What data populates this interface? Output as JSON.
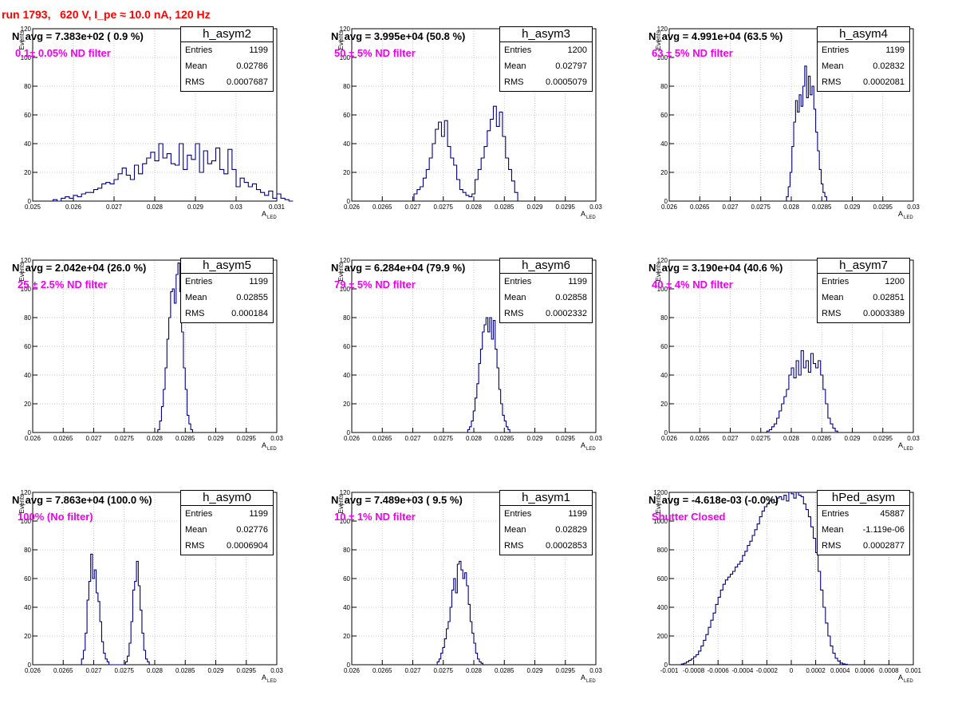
{
  "page_title": "run 1793,   620 V, I_pe ≈ 10.0 nA, 120 Hz",
  "page_title_color": "#ff0000",
  "hist_color": "#000080",
  "filter_color": "#ee00ee",
  "chart_data": [
    {
      "type": "bar",
      "hist_name": "h_asym2",
      "navg_text": "N_avg = 7.383e+02 ( 0.9 %)",
      "filter_text": "0.1± 0.05% ND filter",
      "stats": [
        [
          "Entries",
          "1199"
        ],
        [
          "Mean",
          "0.02786"
        ],
        [
          "RMS",
          "0.0007687"
        ]
      ],
      "ylabel": "Events",
      "xlabel": "A",
      "xlabel_sub": "LED",
      "xlim": [
        0.025,
        0.031
      ],
      "ylim": [
        0,
        120
      ],
      "xticks": [
        0.025,
        0.026,
        0.027,
        0.028,
        0.029,
        0.03,
        0.031
      ],
      "xtick_labels": [
        "0.025",
        "0.026",
        "0.027",
        "0.028",
        "0.029",
        "0.03",
        "0.031"
      ],
      "yticks": [
        0,
        20,
        40,
        60,
        80,
        100,
        120
      ],
      "ytick_labels": [
        "0",
        "20",
        "40",
        "60",
        "80",
        "100",
        "120"
      ],
      "grid": true,
      "bin_start": 0.0255,
      "bin_width": 0.0001,
      "values": [
        1,
        0,
        2,
        3,
        2,
        4,
        3,
        5,
        6,
        6,
        8,
        9,
        12,
        13,
        12,
        15,
        19,
        23,
        18,
        15,
        25,
        19,
        26,
        30,
        34,
        28,
        40,
        30,
        33,
        26,
        25,
        40,
        22,
        32,
        29,
        40,
        20,
        35,
        26,
        28,
        37,
        22,
        19,
        36,
        22,
        10,
        16,
        13,
        10,
        12,
        8,
        6,
        4,
        7,
        2,
        5,
        2,
        1,
        0
      ]
    },
    {
      "type": "bar",
      "hist_name": "h_asym3",
      "navg_text": "N_avg = 3.995e+04 (50.8 %)",
      "filter_text": "50 ± 5% ND filter",
      "stats": [
        [
          "Entries",
          "1200"
        ],
        [
          "Mean",
          "0.02797"
        ],
        [
          "RMS",
          "0.0005079"
        ]
      ],
      "ylabel": "Events",
      "xlabel": "A",
      "xlabel_sub": "LED",
      "xlim": [
        0.026,
        0.03
      ],
      "ylim": [
        0,
        120
      ],
      "xticks": [
        0.026,
        0.0265,
        0.027,
        0.0275,
        0.028,
        0.0285,
        0.029,
        0.0295,
        0.03
      ],
      "xtick_labels": [
        "0.026",
        "0.0265",
        "0.027",
        "0.0275",
        "0.028",
        "0.0285",
        "0.029",
        "0.0295",
        "0.03"
      ],
      "yticks": [
        0,
        20,
        40,
        60,
        80,
        100,
        120
      ],
      "ytick_labels": [
        "0",
        "20",
        "40",
        "60",
        "80",
        "100",
        "120"
      ],
      "grid": true,
      "bin_start": 0.02702,
      "bin_width": 5e-05,
      "values": [
        5,
        8,
        10,
        16,
        22,
        30,
        40,
        50,
        55,
        45,
        56,
        38,
        30,
        25,
        15,
        8,
        6,
        4,
        3,
        5,
        15,
        22,
        30,
        38,
        49,
        57,
        66,
        52,
        62,
        45,
        30,
        22,
        14,
        6
      ]
    },
    {
      "type": "bar",
      "hist_name": "h_asym4",
      "navg_text": "N_avg = 4.991e+04 (63.5 %)",
      "filter_text": "63 ± 5% ND filter",
      "stats": [
        [
          "Entries",
          "1199"
        ],
        [
          "Mean",
          "0.02832"
        ],
        [
          "RMS",
          "0.0002081"
        ]
      ],
      "ylabel": "Events",
      "xlabel": "A",
      "xlabel_sub": "LED",
      "xlim": [
        0.026,
        0.03
      ],
      "ylim": [
        0,
        120
      ],
      "xticks": [
        0.026,
        0.0265,
        0.027,
        0.0275,
        0.028,
        0.0285,
        0.029,
        0.0295,
        0.03
      ],
      "xtick_labels": [
        "0.026",
        "0.0265",
        "0.027",
        "0.0275",
        "0.028",
        "0.0285",
        "0.029",
        "0.0295",
        "0.03"
      ],
      "yticks": [
        0,
        20,
        40,
        60,
        80,
        100,
        120
      ],
      "ytick_labels": [
        "0",
        "20",
        "40",
        "60",
        "80",
        "100",
        "120"
      ],
      "grid": true,
      "bin_start": 0.02792,
      "bin_width": 3e-05,
      "values": [
        3,
        10,
        20,
        38,
        55,
        70,
        62,
        74,
        66,
        80,
        94,
        72,
        87,
        74,
        80,
        64,
        48,
        35,
        22,
        12,
        6,
        3
      ]
    },
    {
      "type": "bar",
      "hist_name": "h_asym5",
      "navg_text": "N_avg = 2.042e+04 (26.0 %)",
      "filter_text": "25 ± 2.5% ND filter",
      "stats": [
        [
          "Entries",
          "1199"
        ],
        [
          "Mean",
          "0.02855"
        ],
        [
          "RMS",
          "0.000184"
        ]
      ],
      "ylabel": "Events",
      "xlabel": "A",
      "xlabel_sub": "LED",
      "xlim": [
        0.026,
        0.03
      ],
      "ylim": [
        0,
        120
      ],
      "xticks": [
        0.026,
        0.0265,
        0.027,
        0.0275,
        0.028,
        0.0285,
        0.029,
        0.0295,
        0.03
      ],
      "xtick_labels": [
        "0.026",
        "0.0265",
        "0.027",
        "0.0275",
        "0.028",
        "0.0285",
        "0.029",
        "0.0295",
        "0.03"
      ],
      "yticks": [
        0,
        20,
        40,
        60,
        80,
        100,
        120
      ],
      "ytick_labels": [
        "0",
        "20",
        "40",
        "60",
        "80",
        "100",
        "120"
      ],
      "grid": true,
      "bin_start": 0.02805,
      "bin_width": 3e-05,
      "values": [
        2,
        8,
        18,
        30,
        45,
        65,
        80,
        98,
        100,
        90,
        110,
        118,
        98,
        70,
        45,
        30,
        12,
        6,
        2
      ]
    },
    {
      "type": "bar",
      "hist_name": "h_asym6",
      "navg_text": "N_avg = 6.284e+04 (79.9 %)",
      "filter_text": "79 ± 5% ND filter",
      "stats": [
        [
          "Entries",
          "1199"
        ],
        [
          "Mean",
          "0.02858"
        ],
        [
          "RMS",
          "0.0002332"
        ]
      ],
      "ylabel": "Events",
      "xlabel": "A",
      "xlabel_sub": "LED",
      "xlim": [
        0.026,
        0.03
      ],
      "ylim": [
        0,
        120
      ],
      "xticks": [
        0.026,
        0.0265,
        0.027,
        0.0275,
        0.028,
        0.0285,
        0.029,
        0.0295,
        0.03
      ],
      "xtick_labels": [
        "0.026",
        "0.0265",
        "0.027",
        "0.0275",
        "0.028",
        "0.0285",
        "0.029",
        "0.0295",
        "0.03"
      ],
      "yticks": [
        0,
        20,
        40,
        60,
        80,
        100,
        120
      ],
      "ytick_labels": [
        "0",
        "20",
        "40",
        "60",
        "80",
        "100",
        "120"
      ],
      "grid": true,
      "bin_start": 0.0279,
      "bin_width": 3e-05,
      "values": [
        2,
        4,
        8,
        15,
        24,
        34,
        48,
        58,
        70,
        75,
        80,
        70,
        80,
        65,
        78,
        58,
        45,
        30,
        20,
        12,
        8,
        4,
        2
      ]
    },
    {
      "type": "bar",
      "hist_name": "h_asym7",
      "navg_text": "N_avg = 3.190e+04 (40.6 %)",
      "filter_text": "40 ± 4% ND filter",
      "stats": [
        [
          "Entries",
          "1200"
        ],
        [
          "Mean",
          "0.02851"
        ],
        [
          "RMS",
          "0.0003389"
        ]
      ],
      "ylabel": "Events",
      "xlabel": "A",
      "xlabel_sub": "LED",
      "xlim": [
        0.026,
        0.03
      ],
      "ylim": [
        0,
        120
      ],
      "xticks": [
        0.026,
        0.0265,
        0.027,
        0.0275,
        0.028,
        0.0285,
        0.029,
        0.0295,
        0.03
      ],
      "xtick_labels": [
        "0.026",
        "0.0265",
        "0.027",
        "0.0275",
        "0.028",
        "0.0285",
        "0.029",
        "0.0295",
        "0.03"
      ],
      "yticks": [
        0,
        20,
        40,
        60,
        80,
        100,
        120
      ],
      "ytick_labels": [
        "0",
        "20",
        "40",
        "60",
        "80",
        "100",
        "120"
      ],
      "grid": true,
      "bin_start": 0.0276,
      "bin_width": 4e-05,
      "values": [
        1,
        2,
        4,
        6,
        10,
        15,
        20,
        25,
        30,
        40,
        45,
        38,
        50,
        40,
        57,
        45,
        50,
        42,
        55,
        48,
        45,
        50,
        40,
        30,
        20,
        10,
        6,
        3,
        1
      ]
    },
    {
      "type": "bar",
      "hist_name": "h_asym0",
      "navg_text": "N_avg = 7.863e+04 (100.0 %)",
      "filter_text": "100% (No filter)",
      "stats": [
        [
          "Entries",
          "1199"
        ],
        [
          "Mean",
          "0.02776"
        ],
        [
          "RMS",
          "0.0006904"
        ]
      ],
      "ylabel": "Events",
      "xlabel": "A",
      "xlabel_sub": "LED",
      "xlim": [
        0.026,
        0.03
      ],
      "ylim": [
        0,
        120
      ],
      "xticks": [
        0.026,
        0.0265,
        0.027,
        0.0275,
        0.028,
        0.0285,
        0.029,
        0.0295,
        0.03
      ],
      "xtick_labels": [
        "0.026",
        "0.0265",
        "0.027",
        "0.0275",
        "0.028",
        "0.0285",
        "0.029",
        "0.0295",
        "0.03"
      ],
      "yticks": [
        0,
        20,
        40,
        60,
        80,
        100,
        120
      ],
      "ytick_labels": [
        "0",
        "20",
        "40",
        "60",
        "80",
        "100",
        "120"
      ],
      "grid": true,
      "bin_start": 0.0268,
      "bin_width": 3e-05,
      "values": [
        4,
        10,
        22,
        45,
        58,
        77,
        60,
        66,
        50,
        44,
        30,
        16,
        8,
        4,
        2,
        0,
        0,
        0,
        0,
        0,
        0,
        0,
        0,
        0,
        2,
        6,
        15,
        30,
        52,
        58,
        72,
        55,
        38,
        22,
        10,
        4,
        2
      ]
    },
    {
      "type": "bar",
      "hist_name": "h_asym1",
      "navg_text": "N_avg = 7.489e+03 ( 9.5 %)",
      "filter_text": "10 ± 1% ND filter",
      "stats": [
        [
          "Entries",
          "1199"
        ],
        [
          "Mean",
          "0.02829"
        ],
        [
          "RMS",
          "0.0002853"
        ]
      ],
      "ylabel": "Events",
      "xlabel": "A",
      "xlabel_sub": "LED",
      "xlim": [
        0.026,
        0.03
      ],
      "ylim": [
        0,
        120
      ],
      "xticks": [
        0.026,
        0.0265,
        0.027,
        0.0275,
        0.028,
        0.0285,
        0.029,
        0.0295,
        0.03
      ],
      "xtick_labels": [
        "0.026",
        "0.0265",
        "0.027",
        "0.0275",
        "0.028",
        "0.0285",
        "0.029",
        "0.0295",
        "0.03"
      ],
      "yticks": [
        0,
        20,
        40,
        60,
        80,
        100,
        120
      ],
      "ytick_labels": [
        "0",
        "20",
        "40",
        "60",
        "80",
        "100",
        "120"
      ],
      "grid": true,
      "bin_start": 0.0274,
      "bin_width": 3e-05,
      "values": [
        2,
        4,
        8,
        12,
        18,
        25,
        30,
        40,
        52,
        60,
        50,
        70,
        72,
        66,
        60,
        64,
        55,
        42,
        30,
        22,
        15,
        8,
        4,
        2,
        1
      ]
    },
    {
      "type": "bar",
      "hist_name": "hPed_asym",
      "navg_text": "N_avg = -4.618e-03 (-0.0%)",
      "filter_text": "Shutter Closed",
      "stats": [
        [
          "Entries",
          "45887"
        ],
        [
          "Mean",
          "-1.119e-06"
        ],
        [
          "RMS",
          "0.0002877"
        ]
      ],
      "ylabel": "Events",
      "xlabel": "A",
      "xlabel_sub": "LED",
      "xlim": [
        -0.001,
        0.001
      ],
      "ylim": [
        0,
        1200
      ],
      "xticks": [
        -0.001,
        -0.0008,
        -0.0006,
        -0.0004,
        -0.0002,
        0,
        0.0002,
        0.0004,
        0.0006,
        0.0008,
        0.001
      ],
      "xtick_labels": [
        "-0.001",
        "-0.0008",
        "-0.0006",
        "-0.0004",
        "-0.0002",
        "0",
        "0.0002",
        "0.0004",
        "0.0006",
        "0.0008",
        "0.001"
      ],
      "yticks": [
        0,
        200,
        400,
        600,
        800,
        1000,
        1200
      ],
      "ytick_labels": [
        "0",
        "200",
        "400",
        "600",
        "800",
        "1000",
        "1200"
      ],
      "grid": true,
      "bin_start": -0.0009,
      "bin_width": 2e-05,
      "values": [
        5,
        10,
        20,
        30,
        40,
        55,
        70,
        95,
        130,
        170,
        210,
        260,
        310,
        360,
        420,
        470,
        520,
        560,
        590,
        610,
        630,
        650,
        680,
        700,
        720,
        760,
        790,
        830,
        860,
        900,
        940,
        980,
        1030,
        1070,
        1100,
        1120,
        1140,
        1150,
        1130,
        1160,
        1170,
        1150,
        1180,
        1140,
        1200,
        1190,
        1160,
        1200,
        1180,
        1170,
        1120,
        1080,
        1030,
        960,
        880,
        780,
        650,
        520,
        400,
        290,
        200,
        130,
        80,
        45,
        25,
        12,
        6,
        3
      ]
    }
  ]
}
